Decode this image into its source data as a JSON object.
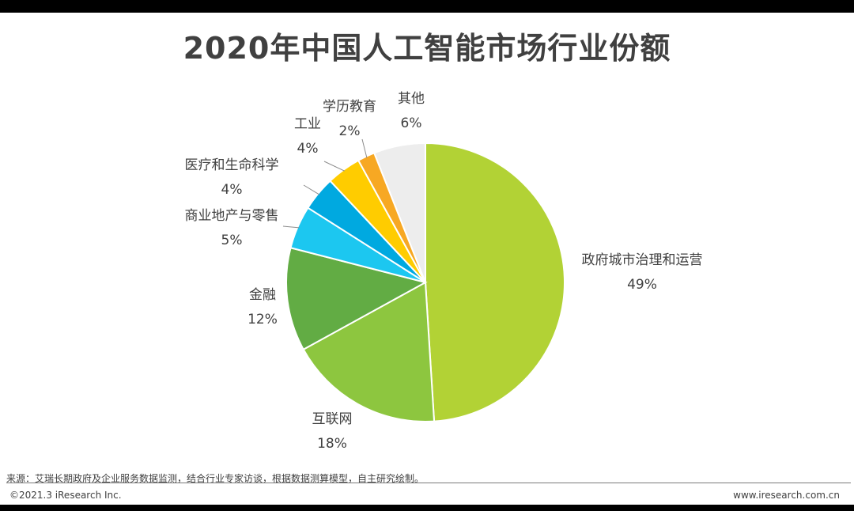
{
  "header": {
    "title": "2020年中国人工智能市场行业份额"
  },
  "chart_data": {
    "type": "pie",
    "title": "2020年中国人工智能市场行业份额",
    "start": "12 o'clock",
    "direction": "clockwise",
    "slices": [
      {
        "label": "政府城市治理和运营",
        "value": 49,
        "display": "49%",
        "color": "#B2D235"
      },
      {
        "label": "互联网",
        "value": 18,
        "display": "18%",
        "color": "#8DC63F"
      },
      {
        "label": "金融",
        "value": 12,
        "display": "12%",
        "color": "#62AC44"
      },
      {
        "label": "商业地产与零售",
        "value": 5,
        "display": "5%",
        "color": "#1CC7F0"
      },
      {
        "label": "医疗和生命科学",
        "value": 4,
        "display": "4%",
        "color": "#00A9E0"
      },
      {
        "label": "工业",
        "value": 4,
        "display": "4%",
        "color": "#FFCC00"
      },
      {
        "label": "学历教育",
        "value": 2,
        "display": "2%",
        "color": "#F7A823"
      },
      {
        "label": "其他",
        "value": 6,
        "display": "6%",
        "color": "#EDEDED"
      }
    ]
  },
  "footer": {
    "source": "来源：艾瑞长期政府及企业服务数据监测，结合行业专家访谈，根据数据测算模型，自主研究绘制。",
    "copyright": "©2021.3 iResearch Inc.",
    "website": "www.iresearch.com.cn"
  }
}
